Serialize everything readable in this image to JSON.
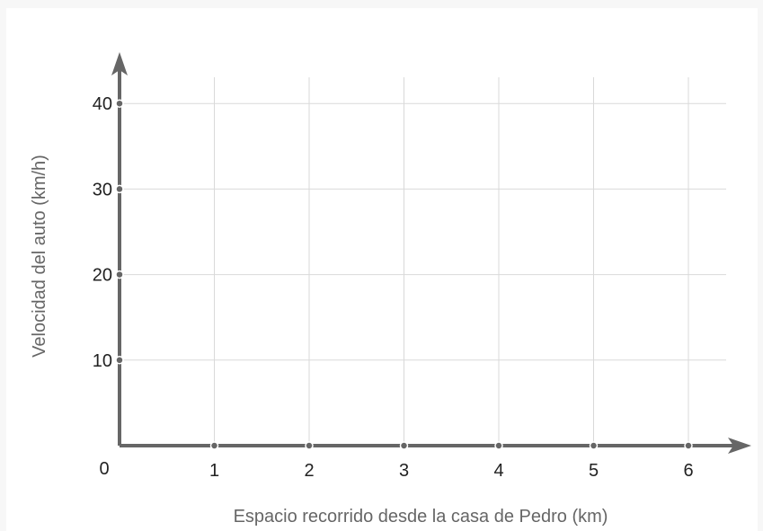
{
  "chart_data": {
    "type": "line",
    "title": "",
    "xlabel": "Espacio recorrido desde la casa de Pedro (km)",
    "ylabel": "Velocidad del auto (km/h)",
    "x_ticks": [
      1,
      2,
      3,
      4,
      5,
      6
    ],
    "y_ticks": [
      10,
      20,
      30,
      40
    ],
    "origin_label": "0",
    "xlim": [
      0,
      6.4
    ],
    "ylim": [
      0,
      40
    ],
    "grid": true,
    "series": []
  },
  "colors": {
    "axis": "#666666",
    "grid": "#d9d9d9",
    "background": "#ffffff"
  }
}
